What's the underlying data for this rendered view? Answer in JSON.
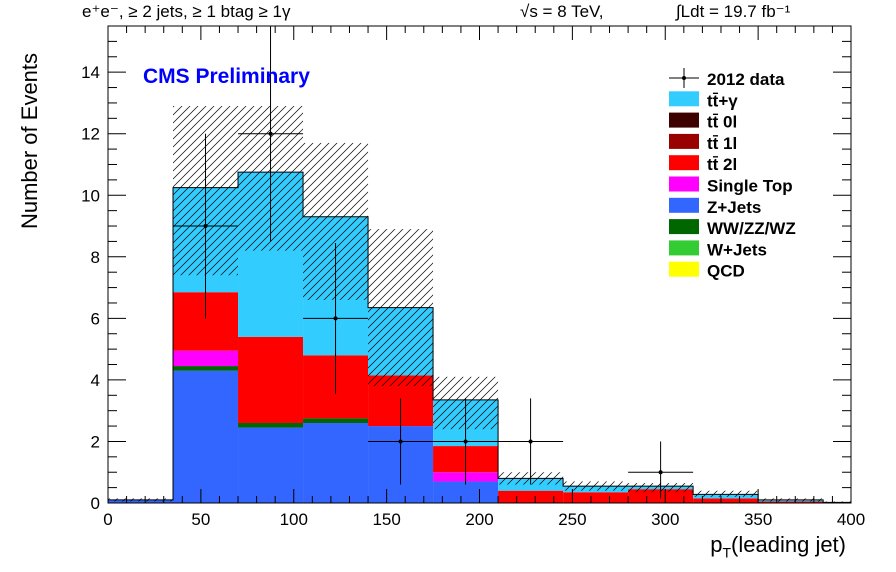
{
  "header": {
    "selection": "e⁺e⁻, ≥ 2 jets, ≥ 1 btag ≥ 1γ",
    "energy": "√s = 8 TeV,",
    "lumi": "∫Ldt = 19.7 fb⁻¹"
  },
  "cms_label": "CMS Preliminary",
  "colors": {
    "cms_text": "#0000ff",
    "ttgamma": "#33ccff",
    "tt0l": "#3d0000",
    "tt1l": "#990000",
    "tt2l": "#ff0000",
    "singletop": "#ff00ff",
    "zjets": "#3366ff",
    "diboson": "#006600",
    "wjets": "#33cc33",
    "qcd": "#ffff00"
  },
  "chart_data": {
    "type": "bar",
    "subtype": "stacked-histogram",
    "xlabel": "pT(leading jet)",
    "xlabel_main": "p",
    "xlabel_sub": "T",
    "xlabel_rest": "(leading jet)",
    "ylabel": "Number of Events",
    "xlim": [
      0,
      400
    ],
    "ylim": [
      0,
      15.5
    ],
    "xticks": [
      "0",
      "50",
      "100",
      "150",
      "200",
      "250",
      "300",
      "350",
      "400"
    ],
    "yticks": [
      "0",
      "2",
      "4",
      "6",
      "8",
      "10",
      "12",
      "14"
    ],
    "bin_edges": [
      0,
      35,
      70,
      105,
      140,
      175,
      210,
      245,
      280,
      315,
      350,
      385,
      400
    ],
    "series": [
      {
        "name": "Z+Jets",
        "color_key": "zjets",
        "values": [
          0.1,
          4.3,
          2.45,
          2.6,
          2.5,
          0.7,
          0,
          0,
          0,
          0,
          0,
          0
        ]
      },
      {
        "name": "WW/ZZ/WZ",
        "color_key": "diboson",
        "values": [
          0,
          0.15,
          0.15,
          0.15,
          0,
          0,
          0,
          0,
          0,
          0,
          0,
          0
        ]
      },
      {
        "name": "Single Top",
        "color_key": "singletop",
        "values": [
          0,
          0.5,
          0,
          0,
          0,
          0.3,
          0,
          0,
          0,
          0,
          0,
          0
        ]
      },
      {
        "name": "tt̄ 2l",
        "color_key": "tt2l",
        "values": [
          0,
          1.9,
          2.8,
          2.05,
          1.65,
          0.85,
          0.4,
          0.35,
          0.45,
          0.15,
          0.05,
          0
        ]
      },
      {
        "name": "tt̄+γ",
        "color_key": "ttgamma",
        "values": [
          0,
          3.4,
          5.35,
          4.5,
          2.2,
          1.5,
          0.4,
          0.2,
          0.1,
          0.13,
          0.05,
          0.02
        ]
      }
    ],
    "uncertainty_band": [
      {
        "lo": 0.05,
        "hi": 0.15
      },
      {
        "lo": 7.4,
        "hi": 12.9
      },
      {
        "lo": 8.2,
        "hi": 12.9
      },
      {
        "lo": 6.6,
        "hi": 11.7
      },
      {
        "lo": 3.8,
        "hi": 8.9
      },
      {
        "lo": 2.4,
        "hi": 4.1
      },
      {
        "lo": 0.6,
        "hi": 1.0
      },
      {
        "lo": 0.4,
        "hi": 0.7
      },
      {
        "lo": 0.35,
        "hi": 0.65
      },
      {
        "lo": 0.2,
        "hi": 0.4
      },
      {
        "lo": 0.05,
        "hi": 0.15
      },
      {
        "lo": 0.0,
        "hi": 0.05
      }
    ],
    "data_points": [
      {
        "x": 52.5,
        "y": 9,
        "xerr": 17.5,
        "ylo": 6.0,
        "yhi": 12.0
      },
      {
        "x": 87.5,
        "y": 12,
        "xerr": 17.5,
        "ylo": 8.5,
        "yhi": 15.5
      },
      {
        "x": 122.5,
        "y": 6,
        "xerr": 17.5,
        "ylo": 3.55,
        "yhi": 8.45
      },
      {
        "x": 157.5,
        "y": 2,
        "xerr": 17.5,
        "ylo": 0.6,
        "yhi": 3.4
      },
      {
        "x": 192.5,
        "y": 2,
        "xerr": 17.5,
        "ylo": 0.6,
        "yhi": 3.4
      },
      {
        "x": 227.5,
        "y": 2,
        "xerr": 17.5,
        "ylo": 0.6,
        "yhi": 3.4
      },
      {
        "x": 297.5,
        "y": 1,
        "xerr": 17.5,
        "ylo": 0.15,
        "yhi": 2.0
      }
    ],
    "legend": {
      "position": "top-right",
      "entries": [
        {
          "label": "2012 data",
          "kind": "data"
        },
        {
          "label": "tt̄+γ",
          "color_key": "ttgamma"
        },
        {
          "label": "tt̄ 0l",
          "color_key": "tt0l"
        },
        {
          "label": "tt̄ 1l",
          "color_key": "tt1l"
        },
        {
          "label": "tt̄ 2l",
          "color_key": "tt2l"
        },
        {
          "label": "Single Top",
          "color_key": "singletop"
        },
        {
          "label": "Z+Jets",
          "color_key": "zjets"
        },
        {
          "label": "WW/ZZ/WZ",
          "color_key": "diboson"
        },
        {
          "label": "W+Jets",
          "color_key": "wjets"
        },
        {
          "label": "QCD",
          "color_key": "qcd"
        }
      ]
    }
  }
}
